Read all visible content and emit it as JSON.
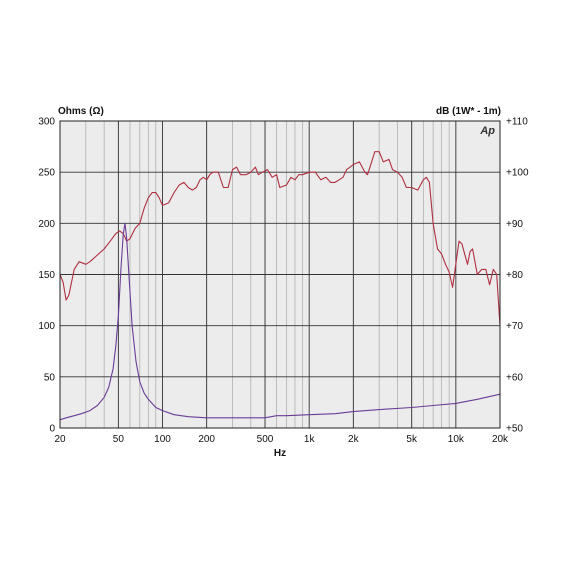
{
  "chart_data": {
    "type": "line",
    "logo": "Ap",
    "xlabel": "Hz",
    "ylabel_left": "Ohms (Ω)",
    "ylabel_right": "dB (1W* - 1m)",
    "x_scale": "log",
    "xlim": [
      20,
      20000
    ],
    "ylim_left": [
      0,
      300
    ],
    "ylim_right": [
      50,
      110
    ],
    "grid": true,
    "x_ticks": [
      {
        "value": 20,
        "label": "20"
      },
      {
        "value": 50,
        "label": "50"
      },
      {
        "value": 100,
        "label": "100"
      },
      {
        "value": 200,
        "label": "200"
      },
      {
        "value": 500,
        "label": "500"
      },
      {
        "value": 1000,
        "label": "1k"
      },
      {
        "value": 2000,
        "label": "2k"
      },
      {
        "value": 5000,
        "label": "5k"
      },
      {
        "value": 10000,
        "label": "10k"
      },
      {
        "value": 20000,
        "label": "20k"
      }
    ],
    "y_ticks_left": [
      "0",
      "50",
      "100",
      "150",
      "200",
      "250",
      "300"
    ],
    "y_ticks_right": [
      "+50",
      "+60",
      "+70",
      "+80",
      "+90",
      "+100",
      "+110"
    ],
    "series": [
      {
        "axis": "right",
        "color": "#b03040",
        "points": [
          [
            20,
            80
          ],
          [
            21,
            78.5
          ],
          [
            22,
            75
          ],
          [
            23,
            76
          ],
          [
            25,
            81
          ],
          [
            27,
            82.5
          ],
          [
            30,
            82
          ],
          [
            32,
            82.5
          ],
          [
            35,
            83.5
          ],
          [
            40,
            85
          ],
          [
            44,
            86.5
          ],
          [
            48,
            88
          ],
          [
            51,
            88.5
          ],
          [
            54,
            88
          ],
          [
            57,
            86.5
          ],
          [
            60,
            87
          ],
          [
            65,
            89
          ],
          [
            70,
            90
          ],
          [
            75,
            93
          ],
          [
            80,
            95
          ],
          [
            85,
            96
          ],
          [
            90,
            96
          ],
          [
            95,
            95
          ],
          [
            100,
            93.5
          ],
          [
            110,
            94
          ],
          [
            120,
            96
          ],
          [
            130,
            97.5
          ],
          [
            140,
            98
          ],
          [
            150,
            97
          ],
          [
            160,
            96.5
          ],
          [
            170,
            97
          ],
          [
            180,
            98.5
          ],
          [
            190,
            99
          ],
          [
            200,
            98.5
          ],
          [
            210,
            99.5
          ],
          [
            220,
            100
          ],
          [
            240,
            100
          ],
          [
            260,
            97
          ],
          [
            280,
            97
          ],
          [
            300,
            100.5
          ],
          [
            320,
            101
          ],
          [
            340,
            99.5
          ],
          [
            370,
            99.5
          ],
          [
            400,
            100
          ],
          [
            430,
            101
          ],
          [
            450,
            99.5
          ],
          [
            480,
            100
          ],
          [
            520,
            100.5
          ],
          [
            560,
            99
          ],
          [
            600,
            99.5
          ],
          [
            630,
            97
          ],
          [
            700,
            97.5
          ],
          [
            750,
            99
          ],
          [
            800,
            98.5
          ],
          [
            850,
            99.5
          ],
          [
            900,
            99.5
          ],
          [
            1000,
            100
          ],
          [
            1100,
            100
          ],
          [
            1200,
            98.5
          ],
          [
            1300,
            99
          ],
          [
            1400,
            98
          ],
          [
            1500,
            98
          ],
          [
            1600,
            98.5
          ],
          [
            1700,
            99
          ],
          [
            1800,
            100.5
          ],
          [
            1900,
            101
          ],
          [
            2000,
            101.5
          ],
          [
            2200,
            102
          ],
          [
            2400,
            100
          ],
          [
            2500,
            99.5
          ],
          [
            2600,
            101
          ],
          [
            2800,
            104
          ],
          [
            3000,
            104
          ],
          [
            3200,
            102
          ],
          [
            3500,
            102.5
          ],
          [
            3700,
            100.5
          ],
          [
            4000,
            100
          ],
          [
            4300,
            99
          ],
          [
            4600,
            97
          ],
          [
            5000,
            97
          ],
          [
            5500,
            96.5
          ],
          [
            6000,
            98.5
          ],
          [
            6300,
            99
          ],
          [
            6600,
            98
          ],
          [
            7000,
            90
          ],
          [
            7500,
            85
          ],
          [
            8000,
            84
          ],
          [
            8500,
            82
          ],
          [
            9000,
            80.5
          ],
          [
            9500,
            77.5
          ],
          [
            10000,
            82
          ],
          [
            10500,
            86.5
          ],
          [
            11000,
            86
          ],
          [
            12000,
            82
          ],
          [
            12500,
            84.5
          ],
          [
            13000,
            85
          ],
          [
            14000,
            80
          ],
          [
            15000,
            81
          ],
          [
            16000,
            81
          ],
          [
            17000,
            78
          ],
          [
            18000,
            81
          ],
          [
            19000,
            80
          ],
          [
            20000,
            70
          ]
        ]
      },
      {
        "axis": "left",
        "color": "#6a3c96",
        "points": [
          [
            20,
            8
          ],
          [
            22,
            10
          ],
          [
            25,
            12
          ],
          [
            28,
            14
          ],
          [
            32,
            17
          ],
          [
            36,
            22
          ],
          [
            40,
            30
          ],
          [
            43,
            40
          ],
          [
            46,
            58
          ],
          [
            48,
            80
          ],
          [
            50,
            110
          ],
          [
            52,
            155
          ],
          [
            54,
            190
          ],
          [
            55.5,
            200
          ],
          [
            57,
            185
          ],
          [
            59,
            150
          ],
          [
            62,
            100
          ],
          [
            66,
            65
          ],
          [
            70,
            45
          ],
          [
            75,
            34
          ],
          [
            80,
            28
          ],
          [
            90,
            20
          ],
          [
            100,
            17
          ],
          [
            120,
            13
          ],
          [
            150,
            11
          ],
          [
            200,
            10
          ],
          [
            300,
            10
          ],
          [
            500,
            10
          ],
          [
            600,
            12
          ],
          [
            700,
            12
          ],
          [
            1000,
            13
          ],
          [
            1500,
            14
          ],
          [
            2000,
            16
          ],
          [
            3000,
            18
          ],
          [
            5000,
            20
          ],
          [
            7000,
            22
          ],
          [
            10000,
            24
          ],
          [
            14000,
            28
          ],
          [
            20000,
            33
          ]
        ]
      }
    ]
  }
}
